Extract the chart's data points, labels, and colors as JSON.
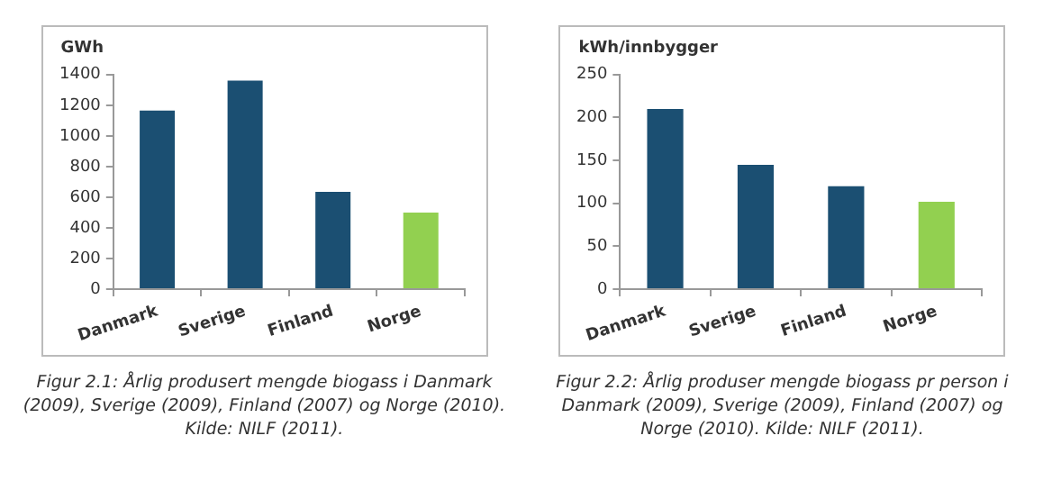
{
  "chart_data": [
    {
      "type": "bar",
      "ylabel": "GWh",
      "categories": [
        "Danmark",
        "Sverige",
        "Finland",
        "Norge"
      ],
      "values": [
        1165,
        1360,
        635,
        500
      ],
      "colors": [
        "#1b4f72",
        "#1b4f72",
        "#1b4f72",
        "#92d050"
      ],
      "ylim": [
        0,
        1400
      ],
      "yticks": [
        0,
        200,
        400,
        600,
        800,
        1000,
        1200,
        1400
      ],
      "grid": false,
      "annotations": [
        "Figur 2.1: Årlig produsert mengde biogass i Danmark (2009), Sverige (2009), Finland (2007) og Norge (2010). Kilde: NILF (2011)."
      ]
    },
    {
      "type": "bar",
      "ylabel": "kWh/innbygger",
      "categories": [
        "Danmark",
        "Sverige",
        "Finland",
        "Norge"
      ],
      "values": [
        210,
        145,
        120,
        102
      ],
      "colors": [
        "#1b4f72",
        "#1b4f72",
        "#1b4f72",
        "#92d050"
      ],
      "ylim": [
        0,
        250
      ],
      "yticks": [
        0,
        50,
        100,
        150,
        200,
        250
      ],
      "grid": false,
      "annotations": [
        "Figur 2.2: Årlig produser mengde biogass pr person i Danmark (2009), Sverige (2009), Finland (2007) og Norge (2010). Kilde: NILF (2011)."
      ]
    }
  ]
}
